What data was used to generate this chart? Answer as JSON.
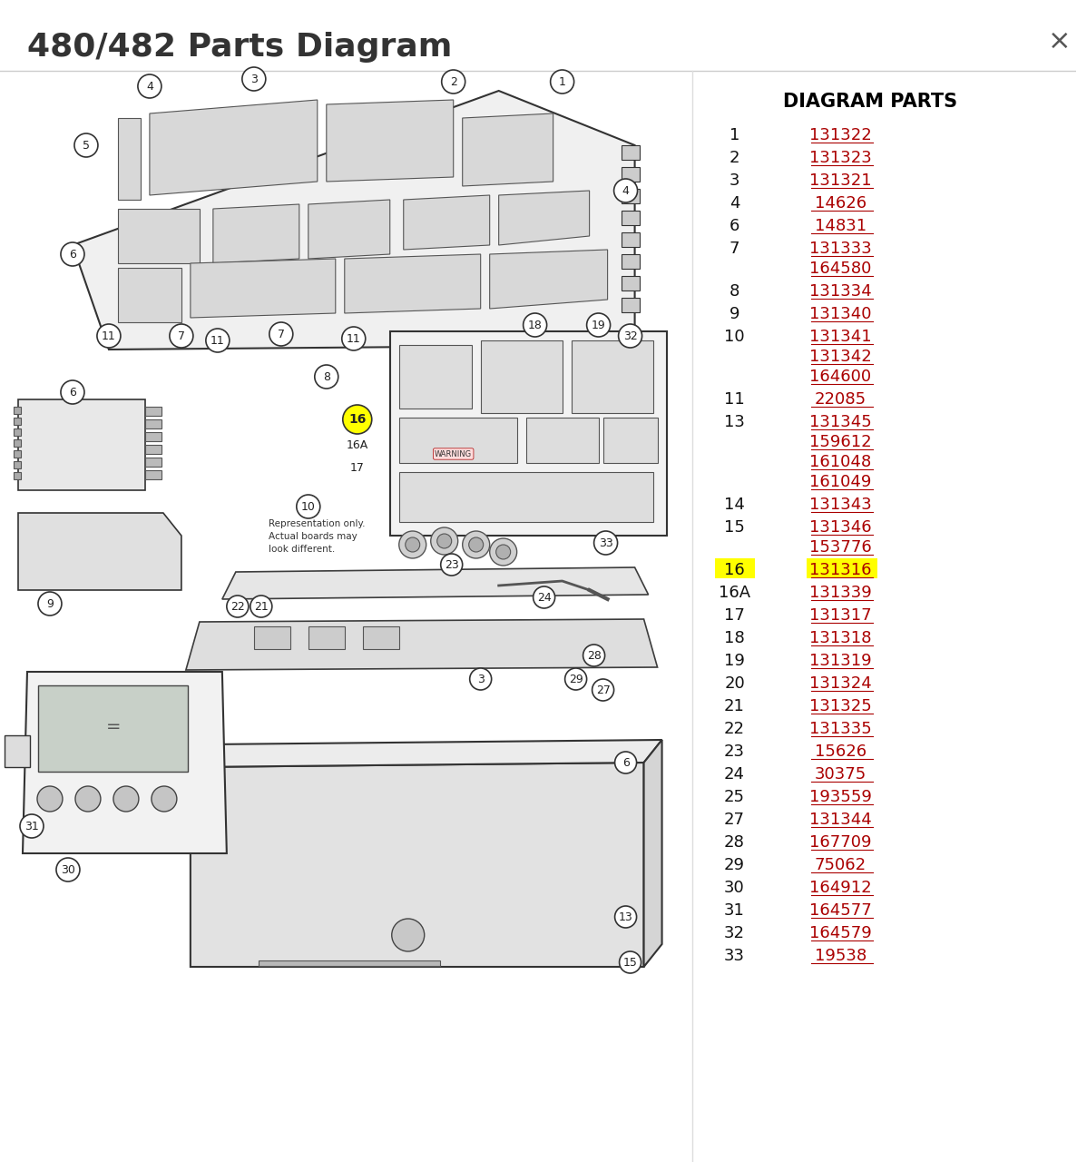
{
  "title": "480/482 Parts Diagram",
  "close_symbol": "×",
  "header": "DIAGRAM PARTS",
  "bg_color": "#ffffff",
  "title_color": "#333333",
  "header_color": "#000000",
  "link_color": "#aa0000",
  "highlight_bg": "#ffff00",
  "parts": [
    {
      "num": "1",
      "codes": [
        "131322"
      ],
      "highlight": false
    },
    {
      "num": "2",
      "codes": [
        "131323"
      ],
      "highlight": false
    },
    {
      "num": "3",
      "codes": [
        "131321"
      ],
      "highlight": false
    },
    {
      "num": "4",
      "codes": [
        "14626"
      ],
      "highlight": false
    },
    {
      "num": "6",
      "codes": [
        "14831"
      ],
      "highlight": false
    },
    {
      "num": "7",
      "codes": [
        "131333",
        "164580"
      ],
      "highlight": false
    },
    {
      "num": "8",
      "codes": [
        "131334"
      ],
      "highlight": false
    },
    {
      "num": "9",
      "codes": [
        "131340"
      ],
      "highlight": false
    },
    {
      "num": "10",
      "codes": [
        "131341",
        "131342",
        "164600"
      ],
      "highlight": false
    },
    {
      "num": "11",
      "codes": [
        "22085"
      ],
      "highlight": false
    },
    {
      "num": "13",
      "codes": [
        "131345",
        "159612",
        "161048",
        "161049"
      ],
      "highlight": false
    },
    {
      "num": "14",
      "codes": [
        "131343"
      ],
      "highlight": false
    },
    {
      "num": "15",
      "codes": [
        "131346",
        "153776"
      ],
      "highlight": false
    },
    {
      "num": "16",
      "codes": [
        "131316"
      ],
      "highlight": true
    },
    {
      "num": "16A",
      "codes": [
        "131339"
      ],
      "highlight": false
    },
    {
      "num": "17",
      "codes": [
        "131317"
      ],
      "highlight": false
    },
    {
      "num": "18",
      "codes": [
        "131318"
      ],
      "highlight": false
    },
    {
      "num": "19",
      "codes": [
        "131319"
      ],
      "highlight": false
    },
    {
      "num": "20",
      "codes": [
        "131324"
      ],
      "highlight": false
    },
    {
      "num": "21",
      "codes": [
        "131325"
      ],
      "highlight": false
    },
    {
      "num": "22",
      "codes": [
        "131335"
      ],
      "highlight": false
    },
    {
      "num": "23",
      "codes": [
        "15626"
      ],
      "highlight": false
    },
    {
      "num": "24",
      "codes": [
        "30375"
      ],
      "highlight": false
    },
    {
      "num": "25",
      "codes": [
        "193559"
      ],
      "highlight": false
    },
    {
      "num": "27",
      "codes": [
        "131344"
      ],
      "highlight": false
    },
    {
      "num": "28",
      "codes": [
        "167709"
      ],
      "highlight": false
    },
    {
      "num": "29",
      "codes": [
        "75062"
      ],
      "highlight": false
    },
    {
      "num": "30",
      "codes": [
        "164912"
      ],
      "highlight": false
    },
    {
      "num": "31",
      "codes": [
        "164577"
      ],
      "highlight": false
    },
    {
      "num": "32",
      "codes": [
        "164579"
      ],
      "highlight": false
    },
    {
      "num": "33",
      "codes": [
        "19538"
      ],
      "highlight": false
    }
  ],
  "diagram_note": "Representation only.\nActual boards may\nlook different."
}
